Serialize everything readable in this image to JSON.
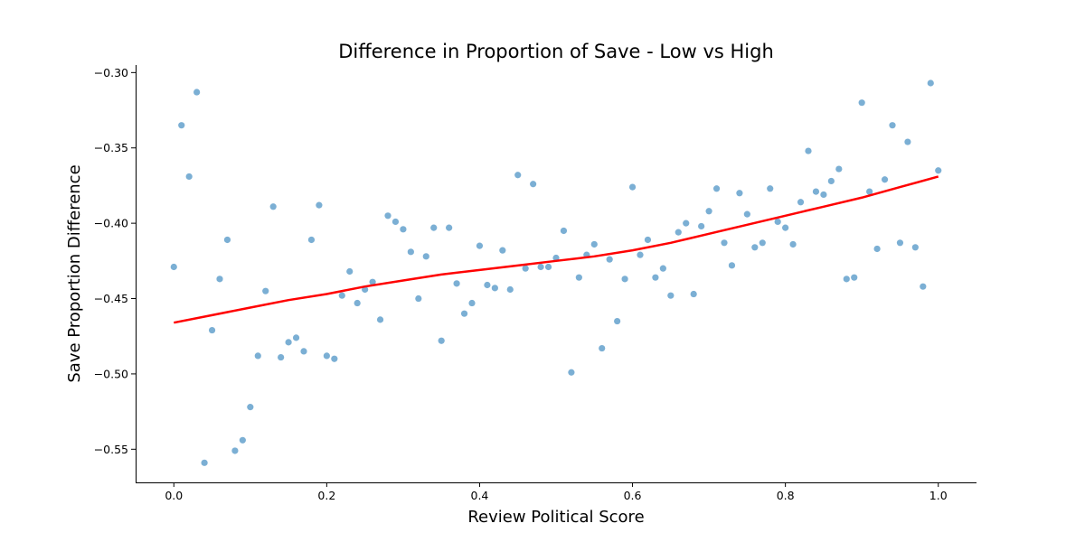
{
  "chart_data": {
    "type": "scatter",
    "title": "Difference in Proportion of Save - Low vs High",
    "xlabel": "Review Political Score",
    "ylabel": "Save Proportion Difference",
    "xlim": [
      -0.05,
      1.05
    ],
    "ylim": [
      -0.572,
      -0.295
    ],
    "x_ticks": [
      0.0,
      0.2,
      0.4,
      0.6,
      0.8,
      1.0
    ],
    "x_tick_labels": [
      "0.0",
      "0.2",
      "0.4",
      "0.6",
      "0.8",
      "1.0"
    ],
    "y_ticks": [
      -0.55,
      -0.5,
      -0.45,
      -0.4,
      -0.35,
      -0.3
    ],
    "y_tick_labels": [
      "−0.55",
      "−0.50",
      "−0.45",
      "−0.40",
      "−0.35",
      "−0.30"
    ],
    "grid": false,
    "colors": {
      "points": "#7bafd4",
      "trend": "#ff0000"
    },
    "series": [
      {
        "kind": "points",
        "x": [
          0.0,
          0.01,
          0.02,
          0.03,
          0.04,
          0.05,
          0.06,
          0.07,
          0.08,
          0.09,
          0.1,
          0.11,
          0.12,
          0.13,
          0.14,
          0.15,
          0.16,
          0.17,
          0.18,
          0.19,
          0.2,
          0.21,
          0.22,
          0.23,
          0.24,
          0.25,
          0.26,
          0.27,
          0.28,
          0.29,
          0.3,
          0.31,
          0.32,
          0.33,
          0.34,
          0.35,
          0.36,
          0.37,
          0.38,
          0.39,
          0.4,
          0.41,
          0.42,
          0.43,
          0.44,
          0.45,
          0.46,
          0.47,
          0.48,
          0.49,
          0.5,
          0.51,
          0.52,
          0.53,
          0.54,
          0.55,
          0.56,
          0.57,
          0.58,
          0.59,
          0.6,
          0.61,
          0.62,
          0.63,
          0.64,
          0.65,
          0.66,
          0.67,
          0.68,
          0.69,
          0.7,
          0.71,
          0.72,
          0.73,
          0.74,
          0.75,
          0.76,
          0.77,
          0.78,
          0.79,
          0.8,
          0.81,
          0.82,
          0.83,
          0.84,
          0.85,
          0.86,
          0.87,
          0.88,
          0.89,
          0.9,
          0.91,
          0.92,
          0.93,
          0.94,
          0.95,
          0.96,
          0.97,
          0.98,
          0.99,
          1.0
        ],
        "y": [
          -0.429,
          -0.335,
          -0.369,
          -0.313,
          -0.559,
          -0.471,
          -0.437,
          -0.411,
          -0.551,
          -0.544,
          -0.522,
          -0.488,
          -0.445,
          -0.389,
          -0.489,
          -0.479,
          -0.476,
          -0.485,
          -0.411,
          -0.388,
          -0.488,
          -0.49,
          -0.448,
          -0.432,
          -0.453,
          -0.444,
          -0.439,
          -0.464,
          -0.395,
          -0.399,
          -0.404,
          -0.419,
          -0.45,
          -0.422,
          -0.403,
          -0.478,
          -0.403,
          -0.44,
          -0.46,
          -0.453,
          -0.415,
          -0.441,
          -0.443,
          -0.418,
          -0.444,
          -0.368,
          -0.43,
          -0.374,
          -0.429,
          -0.429,
          -0.423,
          -0.405,
          -0.499,
          -0.436,
          -0.421,
          -0.414,
          -0.483,
          -0.424,
          -0.465,
          -0.437,
          -0.376,
          -0.421,
          -0.411,
          -0.436,
          -0.43,
          -0.448,
          -0.406,
          -0.4,
          -0.447,
          -0.402,
          -0.392,
          -0.377,
          -0.413,
          -0.428,
          -0.38,
          -0.394,
          -0.416,
          -0.413,
          -0.377,
          -0.399,
          -0.403,
          -0.414,
          -0.386,
          -0.352,
          -0.379,
          -0.381,
          -0.372,
          -0.364,
          -0.437,
          -0.436,
          -0.32,
          -0.379,
          -0.417,
          -0.371,
          -0.335,
          -0.413,
          -0.346,
          -0.416,
          -0.442,
          -0.307,
          -0.365
        ]
      },
      {
        "kind": "trend",
        "x": [
          0.0,
          0.05,
          0.1,
          0.15,
          0.2,
          0.25,
          0.3,
          0.35,
          0.4,
          0.45,
          0.5,
          0.55,
          0.6,
          0.65,
          0.7,
          0.75,
          0.8,
          0.85,
          0.9,
          0.95,
          1.0
        ],
        "y": [
          -0.466,
          -0.461,
          -0.456,
          -0.451,
          -0.447,
          -0.442,
          -0.438,
          -0.434,
          -0.431,
          -0.428,
          -0.425,
          -0.422,
          -0.418,
          -0.413,
          -0.407,
          -0.401,
          -0.395,
          -0.389,
          -0.383,
          -0.376,
          -0.369
        ]
      }
    ]
  }
}
